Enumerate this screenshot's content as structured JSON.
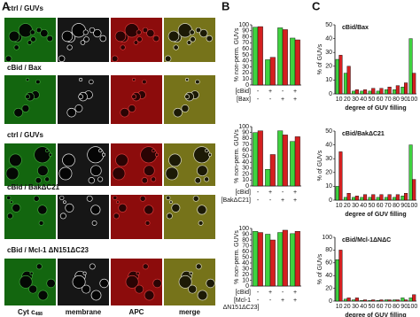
{
  "panel_labels": [
    "A",
    "B",
    "C"
  ],
  "panel_a": {
    "rows": [
      "ctrl / GUVs",
      "cBid / Bax",
      "ctrl / GUVs",
      "cBid / BakΔC21",
      "cBid / Mcl-1 ΔN151ΔC23"
    ],
    "columns": [
      {
        "text": "Cyt c",
        "sub": "488"
      },
      {
        "text": "membrane"
      },
      {
        "text": "APC"
      },
      {
        "text": "merge"
      }
    ]
  },
  "chart_data": [
    {
      "type": "bar",
      "ylabel": "% non-perm. GUVs",
      "categories": [
        null,
        null,
        null,
        null
      ],
      "series": [
        {
          "color": "#3fd23f",
          "values": [
            96,
            42,
            95,
            78
          ]
        },
        {
          "color": "#d42020",
          "values": [
            97,
            46,
            92,
            75
          ]
        }
      ],
      "ylim": [
        0,
        100
      ],
      "yticks": [
        0,
        10,
        20,
        30,
        40,
        50,
        60,
        70,
        80,
        90,
        100
      ],
      "conditions": [
        {
          "label": "[cBid]",
          "marks": [
            "-",
            "+",
            "-",
            "+"
          ]
        },
        {
          "label": "[Bax]",
          "marks": [
            "-",
            "-",
            "+",
            "+"
          ]
        }
      ]
    },
    {
      "type": "bar",
      "ylabel": "% non-perm. GUVs",
      "categories": [
        null,
        null,
        null,
        null
      ],
      "series": [
        {
          "color": "#3fd23f",
          "values": [
            90,
            28,
            93,
            75
          ]
        },
        {
          "color": "#d42020",
          "values": [
            93,
            53,
            86,
            83
          ]
        }
      ],
      "ylim": [
        0,
        100
      ],
      "yticks": [
        0,
        10,
        20,
        30,
        40,
        50,
        60,
        70,
        80,
        90,
        100
      ],
      "conditions": [
        {
          "label": "[cBid]",
          "marks": [
            "-",
            "+",
            "-",
            "+"
          ]
        },
        {
          "label": "[BakΔC21]",
          "marks": [
            "-",
            "-",
            "+",
            "+"
          ]
        }
      ]
    },
    {
      "type": "bar",
      "ylabel": "% non-perm. GUVs",
      "categories": [
        null,
        null,
        null,
        null
      ],
      "series": [
        {
          "color": "#3fd23f",
          "values": [
            95,
            90,
            93,
            91
          ]
        },
        {
          "color": "#d42020",
          "values": [
            93,
            80,
            97,
            95
          ]
        }
      ],
      "ylim": [
        0,
        100
      ],
      "yticks": [
        0,
        10,
        20,
        30,
        40,
        50,
        60,
        70,
        80,
        90,
        100
      ],
      "conditions": [
        {
          "label": "[cBid]",
          "marks": [
            "-",
            "+",
            "-",
            "+"
          ]
        },
        {
          "label": "[Mcl-1",
          "sub": "ΔN151ΔC23]",
          "marks": [
            "-",
            "-",
            "+",
            "+"
          ]
        }
      ]
    },
    {
      "type": "bar",
      "title": "cBid/Bax",
      "ylabel": "% of GUVs",
      "xlabel": "degree of GUV filling",
      "categories": [
        10,
        20,
        30,
        40,
        50,
        60,
        70,
        80,
        90,
        100
      ],
      "series": [
        {
          "color": "#3fd23f",
          "values": [
            25,
            15,
            2,
            2,
            2,
            2,
            3,
            3,
            5,
            40
          ]
        },
        {
          "color": "#d42020",
          "values": [
            28,
            20,
            3,
            3,
            4,
            4,
            5,
            6,
            8,
            15
          ]
        }
      ],
      "ylim": [
        0,
        50
      ],
      "yticks": [
        0,
        10,
        20,
        30,
        40,
        50
      ]
    },
    {
      "type": "bar",
      "title": "cBid/BakΔC21",
      "ylabel": "% of GUVs",
      "xlabel": "degree of GUV filling",
      "categories": [
        10,
        20,
        30,
        40,
        50,
        60,
        70,
        80,
        90,
        100
      ],
      "series": [
        {
          "color": "#3fd23f",
          "values": [
            10,
            2,
            2,
            2,
            2,
            2,
            2,
            2,
            3,
            40
          ]
        },
        {
          "color": "#d42020",
          "values": [
            35,
            5,
            3,
            4,
            4,
            4,
            4,
            4,
            5,
            15
          ]
        }
      ],
      "ylim": [
        0,
        50
      ],
      "yticks": [
        0,
        10,
        20,
        30,
        40,
        50
      ]
    },
    {
      "type": "bar",
      "title": "cBid/Mcl-1ΔNΔC",
      "ylabel": "% of GUVs",
      "xlabel": "degree of GUV filling",
      "categories": [
        10,
        20,
        30,
        40,
        50,
        60,
        70,
        80,
        90,
        100
      ],
      "series": [
        {
          "color": "#3fd23f",
          "values": [
            65,
            3,
            2,
            1,
            1,
            1,
            2,
            2,
            5,
            5
          ]
        },
        {
          "color": "#d42020",
          "values": [
            80,
            5,
            5,
            2,
            2,
            2,
            2,
            2,
            2,
            10
          ]
        }
      ],
      "ylim": [
        0,
        100
      ],
      "yticks": [
        0,
        20,
        40,
        60,
        80,
        100
      ]
    }
  ]
}
